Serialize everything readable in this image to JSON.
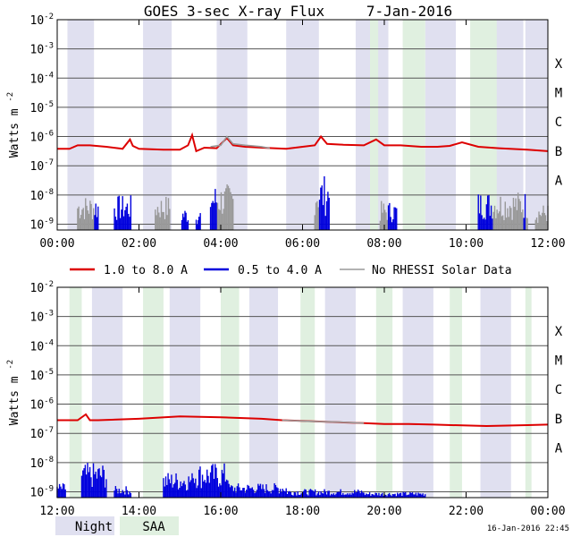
{
  "title": "GOES 3-sec X-ray Flux",
  "date": "7-Jan-2016",
  "timestamp": "16-Jan-2016 22:45",
  "colors": {
    "night": "#e0e0f0",
    "saa": "#e0f0e0",
    "red": "#dd0000",
    "blue": "#0000dd",
    "gray": "#999999"
  },
  "legend": {
    "red": "1.0 to 8.0 A",
    "blue": "0.5 to 4.0 A",
    "gray": "No RHESSI Solar Data",
    "night": "Night",
    "saa": "SAA"
  },
  "chart_data": [
    {
      "type": "line",
      "ylabel": "Watts m",
      "ylabel_sup": "-2",
      "y_log_range": [
        -9.2,
        -2
      ],
      "y_tick_exponents": [
        -9,
        -8,
        -7,
        -6,
        -5,
        -4,
        -3,
        -2
      ],
      "y_tick_base": "10",
      "flare_classes": [
        "A",
        "B",
        "C",
        "M",
        "X"
      ],
      "x_range_hours": [
        0,
        12
      ],
      "x_ticks": [
        "00:00",
        "02:00",
        "04:00",
        "06:00",
        "08:00",
        "10:00",
        "12:00"
      ],
      "night_intervals": [
        [
          0.25,
          0.9
        ],
        [
          2.1,
          2.8
        ],
        [
          3.9,
          4.65
        ],
        [
          5.6,
          6.4
        ],
        [
          7.3,
          8.1
        ],
        [
          9.0,
          9.75
        ],
        [
          10.65,
          11.4
        ],
        [
          11.45,
          12.0
        ]
      ],
      "saa_intervals": [
        [
          7.65,
          7.85
        ],
        [
          8.45,
          9.0
        ],
        [
          10.1,
          10.75
        ]
      ],
      "series_red": {
        "name": "1.0 to 8.0 A",
        "x": [
          0,
          0.3,
          0.5,
          0.8,
          1.2,
          1.6,
          1.78,
          1.85,
          2.0,
          2.6,
          3.0,
          3.2,
          3.3,
          3.4,
          3.6,
          3.9,
          4.15,
          4.3,
          4.6,
          5.0,
          5.6,
          6.0,
          6.3,
          6.45,
          6.6,
          7.0,
          7.5,
          7.8,
          8.0,
          8.4,
          8.9,
          9.3,
          9.6,
          9.9,
          10.3,
          10.8,
          11.5,
          12.0
        ],
        "y": [
          -6.42,
          -6.42,
          -6.3,
          -6.3,
          -6.35,
          -6.42,
          -6.1,
          -6.32,
          -6.42,
          -6.45,
          -6.45,
          -6.3,
          -5.95,
          -6.5,
          -6.38,
          -6.4,
          -6.05,
          -6.3,
          -6.35,
          -6.38,
          -6.42,
          -6.35,
          -6.3,
          -6.0,
          -6.25,
          -6.28,
          -6.3,
          -6.1,
          -6.3,
          -6.3,
          -6.35,
          -6.35,
          -6.32,
          -6.2,
          -6.35,
          -6.4,
          -6.45,
          -6.5
        ]
      },
      "series_gray": {
        "name": "No RHESSI Solar Data",
        "x": [
          3.75,
          4.0,
          4.15,
          4.3,
          4.6,
          4.8,
          5.0,
          5.2
        ],
        "y": [
          -6.35,
          -6.3,
          -6.0,
          -6.25,
          -6.3,
          -6.32,
          -6.35,
          -6.4
        ]
      },
      "blue_bursts": [
        [
          0.5,
          1.0,
          -8.0
        ],
        [
          1.4,
          1.8,
          -8.0
        ],
        [
          2.4,
          2.75,
          -8.0
        ],
        [
          3.05,
          3.2,
          -8.4
        ],
        [
          3.4,
          3.5,
          -8.6
        ],
        [
          3.75,
          4.3,
          -7.6
        ],
        [
          6.3,
          6.65,
          -7.3
        ],
        [
          7.9,
          8.3,
          -8.2
        ],
        [
          10.3,
          11.5,
          -7.85
        ],
        [
          11.7,
          12.0,
          -8.3
        ]
      ]
    },
    {
      "type": "line",
      "ylabel": "Watts m",
      "ylabel_sup": "-2",
      "y_log_range": [
        -9.2,
        -2
      ],
      "y_tick_exponents": [
        -9,
        -8,
        -7,
        -6,
        -5,
        -4,
        -3,
        -2
      ],
      "y_tick_base": "10",
      "flare_classes": [
        "A",
        "B",
        "C",
        "M",
        "X"
      ],
      "x_range_hours": [
        12,
        24
      ],
      "x_ticks": [
        "12:00",
        "14:00",
        "16:00",
        "18:00",
        "20:00",
        "22:00",
        "00:00"
      ],
      "night_intervals": [
        [
          12.85,
          13.6
        ],
        [
          14.75,
          15.5
        ],
        [
          16.7,
          17.4
        ],
        [
          18.55,
          19.3
        ],
        [
          20.45,
          21.2
        ],
        [
          22.35,
          23.1
        ]
      ],
      "saa_intervals": [
        [
          12.3,
          12.6
        ],
        [
          14.1,
          14.6
        ],
        [
          16.0,
          16.45
        ],
        [
          17.95,
          18.3
        ],
        [
          19.8,
          20.2
        ],
        [
          21.6,
          21.9
        ],
        [
          23.45,
          23.6
        ]
      ],
      "series_red": {
        "name": "1.0 to 8.0 A",
        "x": [
          12,
          12.5,
          12.7,
          12.8,
          13.0,
          14.0,
          15.0,
          16.0,
          17.0,
          17.5,
          18.5,
          19.5,
          20.0,
          20.6,
          21.2,
          22.5,
          23.5,
          24.0
        ],
        "y": [
          -6.55,
          -6.55,
          -6.35,
          -6.55,
          -6.55,
          -6.5,
          -6.42,
          -6.45,
          -6.5,
          -6.55,
          -6.6,
          -6.65,
          -6.68,
          -6.68,
          -6.7,
          -6.75,
          -6.72,
          -6.7
        ]
      },
      "series_gray": {
        "name": "No RHESSI Solar Data",
        "x": [
          17.5,
          18.0,
          18.5,
          19.0,
          19.5
        ],
        "y": [
          -6.55,
          -6.58,
          -6.6,
          -6.62,
          -6.65
        ]
      },
      "blue_bursts": [
        [
          12.0,
          12.2,
          -8.7
        ],
        [
          12.6,
          13.2,
          -8.0
        ],
        [
          13.4,
          13.8,
          -8.8
        ],
        [
          14.6,
          15.3,
          -8.3
        ],
        [
          15.3,
          16.2,
          -8.0
        ],
        [
          16.2,
          17.6,
          -8.7
        ],
        [
          17.6,
          19.5,
          -8.9
        ],
        [
          19.5,
          21.0,
          -9.0
        ]
      ]
    }
  ]
}
